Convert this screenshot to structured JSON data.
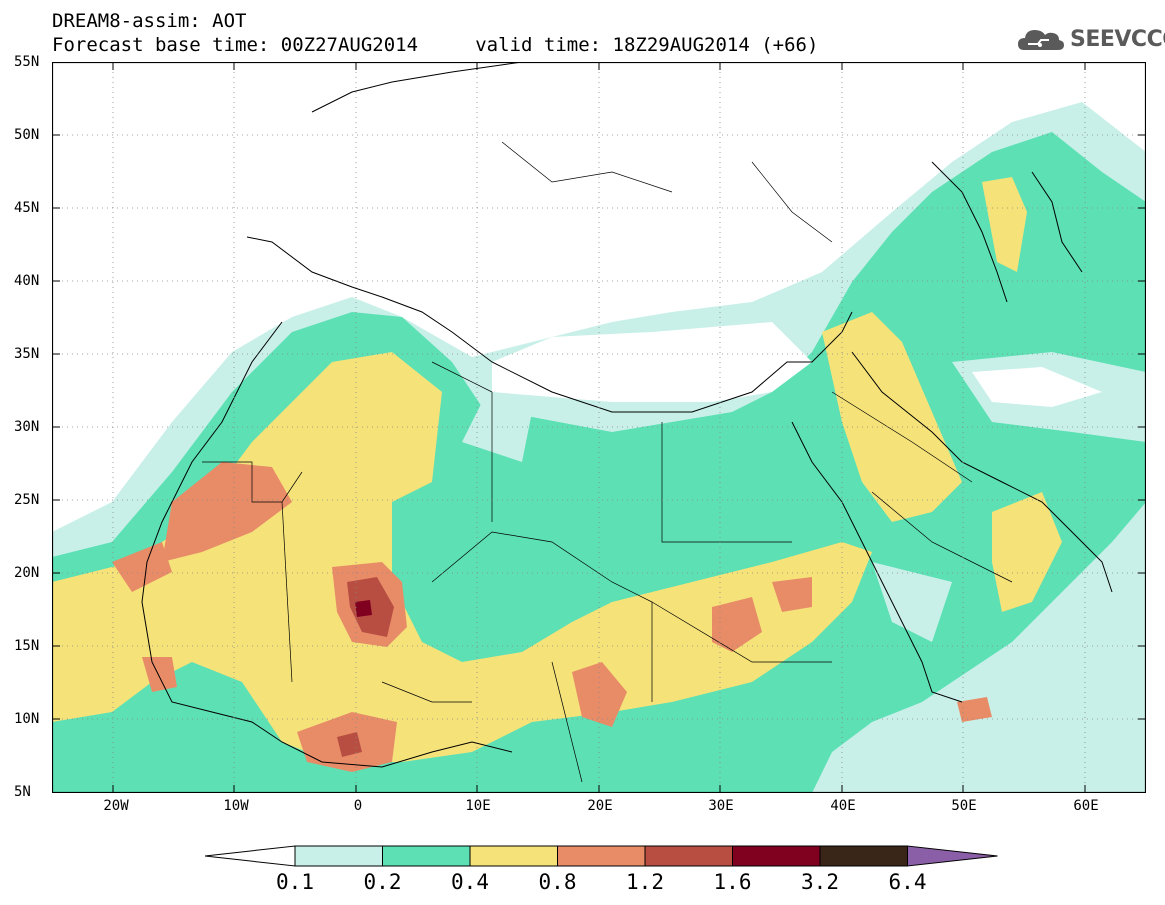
{
  "header": {
    "line1": "DREAM8-assim: AOT",
    "line2": "Forecast base time: 00Z27AUG2014     valid time: 18Z29AUG2014 (+66)"
  },
  "logo": {
    "text": "SEEVCCC",
    "icon": "cloud-icon"
  },
  "map": {
    "variable": "AOT",
    "lon_range": [
      -25,
      65
    ],
    "lat_range": [
      5,
      55
    ],
    "lat_labels": [
      "55N",
      "50N",
      "45N",
      "40N",
      "35N",
      "30N",
      "25N",
      "20N",
      "15N",
      "10N",
      "5N"
    ],
    "lat_values": [
      55,
      50,
      45,
      40,
      35,
      30,
      25,
      20,
      15,
      10,
      5
    ],
    "lon_labels": [
      "20W",
      "10W",
      "0",
      "10E",
      "20E",
      "30E",
      "40E",
      "50E",
      "60E"
    ],
    "lon_values": [
      -20,
      -10,
      0,
      10,
      20,
      30,
      40,
      50,
      60
    ],
    "grid": "dotted"
  },
  "colorbar": {
    "levels": [
      "0.1",
      "0.2",
      "0.4",
      "0.8",
      "1.2",
      "1.6",
      "3.2",
      "6.4"
    ],
    "colors": [
      "#c8f0e8",
      "#5ce0b4",
      "#f5e37a",
      "#e88c68",
      "#b84e42",
      "#800020",
      "#3a2618"
    ],
    "under_color": "#ffffff",
    "over_color": "#8a5fa8"
  }
}
